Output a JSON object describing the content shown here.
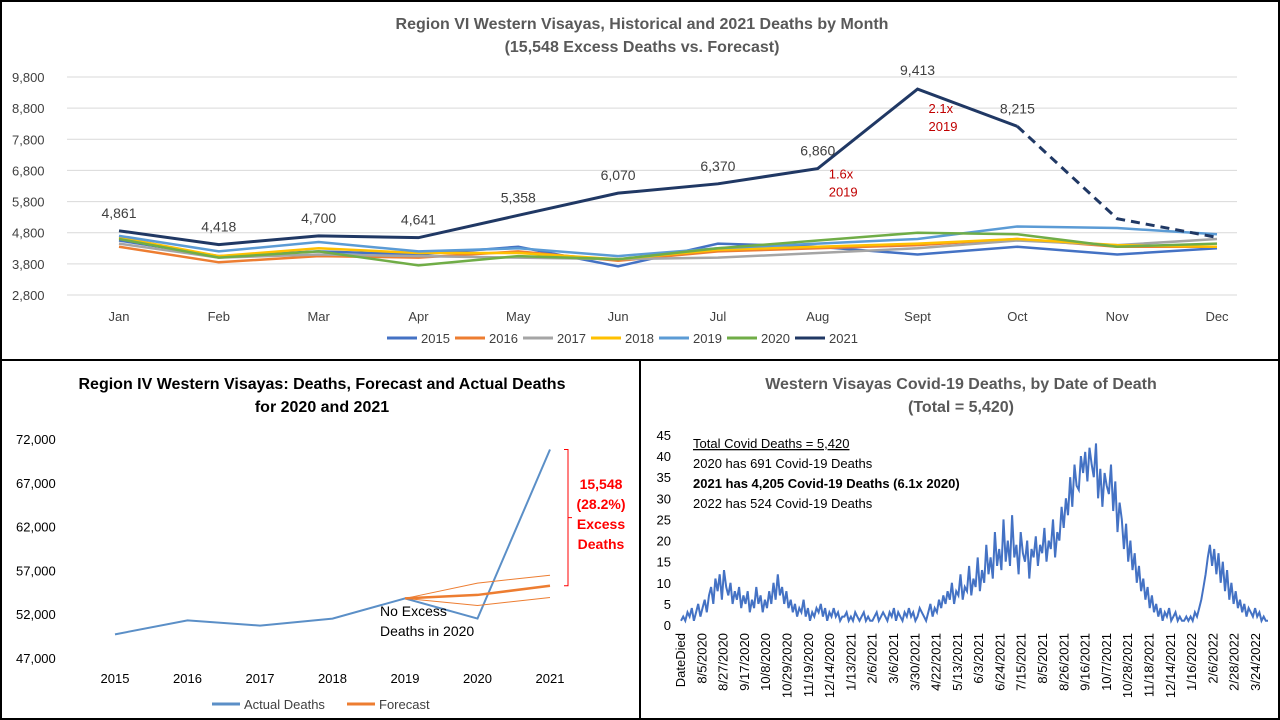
{
  "chart_data": [
    {
      "type": "line",
      "title": "Region VI Western Visayas, Historical and 2021 Deaths by Month",
      "subtitle": "(15,548 Excess Deaths vs. Forecast)",
      "categories": [
        "Jan",
        "Feb",
        "Mar",
        "Apr",
        "May",
        "Jun",
        "Jul",
        "Aug",
        "Sept",
        "Oct",
        "Nov",
        "Dec"
      ],
      "ylim": [
        2800,
        9800
      ],
      "yticks": [
        "2,800",
        "3,800",
        "4,800",
        "5,800",
        "6,800",
        "7,800",
        "8,800",
        "9,800"
      ],
      "legend_position": "bottom",
      "series": [
        {
          "name": "2015",
          "color": "#4472c4",
          "values": [
            4550,
            4050,
            4200,
            4100,
            4350,
            3720,
            4450,
            4350,
            4100,
            4350,
            4100,
            4300
          ]
        },
        {
          "name": "2016",
          "color": "#ed7d31",
          "values": [
            4350,
            3850,
            4050,
            4000,
            4200,
            3900,
            4200,
            4300,
            4400,
            4600,
            4350,
            4350
          ]
        },
        {
          "name": "2017",
          "color": "#a5a5a5",
          "values": [
            4450,
            4000,
            4100,
            4050,
            4000,
            3950,
            4000,
            4150,
            4300,
            4550,
            4400,
            4600
          ]
        },
        {
          "name": "2018",
          "color": "#ffc000",
          "values": [
            4650,
            4050,
            4300,
            4150,
            4150,
            3950,
            4250,
            4350,
            4450,
            4600,
            4400,
            4350
          ]
        },
        {
          "name": "2019",
          "color": "#5b9bd5",
          "values": [
            4700,
            4200,
            4500,
            4200,
            4300,
            4050,
            4300,
            4450,
            4600,
            5000,
            4950,
            4750
          ]
        },
        {
          "name": "2020",
          "color": "#70ad47",
          "values": [
            4600,
            4000,
            4200,
            3750,
            4050,
            3950,
            4300,
            4550,
            4800,
            4750,
            4350,
            4450
          ]
        },
        {
          "name": "2021",
          "color": "#203864",
          "values": [
            4861,
            4418,
            4700,
            4641,
            5358,
            6070,
            6370,
            6860,
            9413,
            8215,
            5250,
            4650
          ]
        }
      ],
      "point_labels_2021": [
        "4,861",
        "4,418",
        "4,700",
        "4,641",
        "5,358",
        "6,070",
        "6,370",
        "6,860",
        "9,413",
        "8,215"
      ],
      "annotations": [
        {
          "category": "Aug",
          "text_lines": [
            "1.6x",
            "2019"
          ],
          "color": "#c00000"
        },
        {
          "category": "Sept",
          "text_lines": [
            "2.1x",
            "2019"
          ],
          "color": "#c00000"
        }
      ]
    },
    {
      "type": "line",
      "title": "Region IV Western Visayas: Deaths, Forecast and Actual Deaths",
      "subtitle": "for 2020 and 2021",
      "categories": [
        "2015",
        "2016",
        "2017",
        "2018",
        "2019",
        "2020",
        "2021"
      ],
      "ylim": [
        47000,
        72000
      ],
      "yticks": [
        "47,000",
        "52,000",
        "57,000",
        "62,000",
        "67,000",
        "72,000"
      ],
      "legend_position": "bottom",
      "series": [
        {
          "name": "Actual Deaths",
          "color": "#5b8fc7",
          "values": [
            49700,
            51300,
            50700,
            51500,
            53800,
            51500,
            70800
          ]
        },
        {
          "name": "Forecast",
          "color": "#ed7d31",
          "values": [
            null,
            null,
            null,
            null,
            53800,
            54200,
            55250
          ]
        }
      ],
      "forecast_bounds": {
        "upper": [
          53800,
          55550,
          56450
        ],
        "lower": [
          53800,
          53000,
          53900
        ]
      },
      "annotations": {
        "no_excess": [
          "No Excess",
          "Deaths in 2020"
        ],
        "excess": [
          "15,548",
          "(28.2%)",
          "Excess",
          "Deaths"
        ],
        "excess_color": "#ff0000"
      }
    },
    {
      "type": "line",
      "title": "Western Visayas Covid-19 Deaths, by Date of Death",
      "subtitle": "(Total = 5,420)",
      "ylim": [
        0,
        45
      ],
      "yticks": [
        "0",
        "5",
        "10",
        "15",
        "20",
        "25",
        "30",
        "35",
        "40",
        "45"
      ],
      "x_tick_labels": [
        "DateDied",
        "8/5/2020",
        "8/27/2020",
        "9/17/2020",
        "10/8/2020",
        "10/29/2020",
        "11/19/2020",
        "12/14/2020",
        "1/13/2021",
        "2/6/2021",
        "3/6/2021",
        "3/30/2021",
        "4/22/2021",
        "5/13/2021",
        "6/3/2021",
        "6/24/2021",
        "7/15/2021",
        "8/5/2021",
        "8/26/2021",
        "9/16/2021",
        "10/7/2021",
        "10/28/2021",
        "11/18/2021",
        "12/14/2021",
        "1/16/2022",
        "2/6/2022",
        "2/28/2022",
        "3/24/2022"
      ],
      "color": "#4472c4",
      "values": [
        1,
        2,
        1,
        3,
        2,
        4,
        1,
        3,
        5,
        2,
        4,
        6,
        3,
        7,
        9,
        5,
        11,
        8,
        12,
        6,
        13,
        9,
        7,
        10,
        5,
        8,
        6,
        9,
        4,
        7,
        5,
        8,
        3,
        6,
        4,
        9,
        5,
        7,
        3,
        6,
        4,
        8,
        5,
        10,
        6,
        12,
        7,
        9,
        5,
        8,
        4,
        6,
        3,
        5,
        2,
        4,
        3,
        6,
        2,
        4,
        1,
        3,
        2,
        4,
        3,
        5,
        2,
        4,
        1,
        3,
        2,
        4,
        2,
        3,
        1,
        2,
        2,
        3,
        1,
        2,
        1,
        3,
        2,
        1,
        2,
        3,
        1,
        2,
        1,
        1,
        2,
        3,
        1,
        2,
        3,
        2,
        1,
        3,
        2,
        4,
        1,
        3,
        2,
        1,
        3,
        2,
        4,
        2,
        3,
        1,
        2,
        4,
        3,
        2,
        1,
        3,
        5,
        2,
        4,
        3,
        6,
        4,
        7,
        5,
        8,
        6,
        10,
        5,
        8,
        7,
        12,
        6,
        9,
        8,
        14,
        7,
        11,
        9,
        16,
        8,
        13,
        10,
        19,
        12,
        16,
        11,
        22,
        14,
        18,
        13,
        25,
        15,
        20,
        14,
        26,
        16,
        19,
        12,
        22,
        17,
        15,
        20,
        11,
        18,
        16,
        21,
        14,
        19,
        17,
        23,
        15,
        20,
        18,
        25,
        16,
        22,
        20,
        28,
        23,
        30,
        26,
        35,
        28,
        38,
        33,
        32,
        40,
        36,
        41,
        34,
        42,
        38,
        35,
        43,
        30,
        37,
        28,
        36,
        33,
        31,
        38,
        27,
        34,
        22,
        29,
        25,
        18,
        24,
        15,
        20,
        13,
        17,
        10,
        14,
        8,
        11,
        6,
        9,
        4,
        7,
        3,
        5,
        2,
        4,
        1,
        3,
        2,
        4,
        1,
        2,
        3,
        1,
        2,
        1,
        1,
        2,
        1,
        2,
        1,
        3,
        2,
        4,
        6,
        9,
        12,
        16,
        19,
        14,
        18,
        12,
        17,
        10,
        15,
        8,
        13,
        6,
        10,
        5,
        8,
        4,
        6,
        3,
        5,
        2,
        4,
        3,
        2,
        4,
        2,
        3,
        1,
        2,
        1,
        1
      ],
      "annotation_lines": [
        {
          "text": "Total Covid Deaths = 5,420",
          "style": "underline"
        },
        {
          "text": "2020 has 691 Covid-19 Deaths",
          "style": "normal"
        },
        {
          "text": "2021 has 4,205 Covid-19 Deaths (6.1x 2020)",
          "style": "bold"
        },
        {
          "text": "2022 has 524 Covid-19 Deaths",
          "style": "normal"
        }
      ]
    }
  ]
}
